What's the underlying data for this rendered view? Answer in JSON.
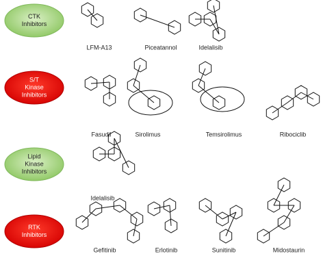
{
  "groups": [
    {
      "label": [
        "CTK",
        "Inhibitors"
      ],
      "color": "green",
      "drugs": [
        "LFM-A13",
        "Piceatannol",
        "Idelalisib"
      ]
    },
    {
      "label": [
        "S/T",
        "Kinase",
        "Inhibitors"
      ],
      "color": "red",
      "drugs": [
        "Fasudil",
        "Sirolimus",
        "Temsirolimus",
        "Ribociclib"
      ]
    },
    {
      "label": [
        "Lipid",
        "Kinase",
        "Inhibitors"
      ],
      "color": "green",
      "drugs": [
        "Idelalisib"
      ]
    },
    {
      "label": [
        "RTK",
        "Inhibitors"
      ],
      "color": "red",
      "drugs": [
        "Gefitinib",
        "Erlotinib",
        "Sunitinib",
        "Midostaurin"
      ]
    }
  ]
}
